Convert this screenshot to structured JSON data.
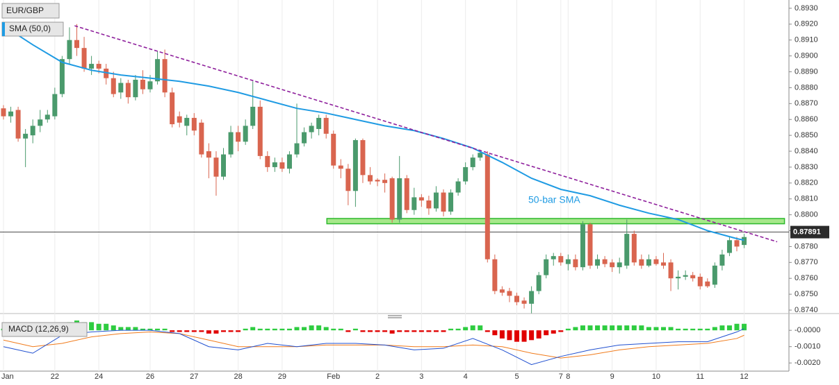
{
  "chart_data": {
    "type": "candlestick",
    "title": "EUR/GBP",
    "categories": [
      "Jan",
      null,
      null,
      null,
      null,
      null,
      null,
      "22",
      null,
      null,
      null,
      null,
      null,
      "24",
      null,
      null,
      null,
      null,
      null,
      null,
      "26",
      null,
      null,
      null,
      null,
      null,
      "27",
      null,
      null,
      null,
      null,
      null,
      "28",
      null,
      null,
      null,
      null,
      null,
      "29",
      null,
      null,
      null,
      null,
      null,
      null,
      "Feb",
      null,
      null,
      null,
      null,
      null,
      "2",
      null,
      null,
      null,
      null,
      null,
      "3",
      null,
      null,
      null,
      null,
      null,
      "4",
      null,
      null,
      null,
      null,
      null,
      null,
      "5",
      null,
      null,
      null,
      null,
      null,
      "7",
      "8",
      null,
      null,
      null,
      null,
      null,
      "9",
      null,
      null,
      null,
      null,
      null,
      "10",
      null,
      null,
      null,
      null,
      null,
      "11",
      null,
      null,
      null,
      null,
      null,
      "12"
    ],
    "open": [
      0.8867,
      0.8862,
      0.8866,
      0.8848,
      0.885,
      0.8856,
      0.886,
      0.8862,
      0.8876,
      0.8898,
      0.891,
      0.8905,
      0.8892,
      0.8895,
      0.8892,
      0.8886,
      0.8877,
      0.8883,
      0.8874,
      0.8885,
      0.8879,
      0.8884,
      0.8898,
      0.8877,
      0.8862,
      0.8856,
      0.8861,
      0.8858,
      0.884,
      0.8836,
      0.8824,
      0.8838,
      0.8852,
      0.8846,
      0.8856,
      0.8868,
      0.8837,
      0.883,
      0.8833,
      0.8829,
      0.8838,
      0.8845,
      0.8852,
      0.8854,
      0.8861,
      0.8851,
      0.8831,
      0.8829,
      0.8815,
      0.8847,
      0.8825,
      0.8822,
      0.8822,
      0.8823,
      0.8797,
      0.8823,
      0.8803,
      0.8811,
      0.8809,
      0.8804,
      0.8814,
      0.8802,
      0.8814,
      0.8821,
      0.883,
      0.8836,
      0.8838,
      0.8772,
      0.8753,
      0.8752,
      0.8749,
      0.8746,
      0.8744,
      0.8752,
      0.8762,
      0.8772,
      0.8774,
      0.8769,
      0.8772,
      0.8767,
      0.8794,
      0.8768,
      0.8772,
      0.877,
      0.8767,
      0.8768,
      0.8788,
      0.8772,
      0.8768,
      0.8772,
      0.877,
      0.877,
      0.876,
      0.8761,
      0.8762,
      0.8761,
      0.8758,
      0.8756,
      0.8768,
      0.8776,
      0.8784,
      0.8781
    ],
    "high": [
      0.8869,
      0.8868,
      0.8868,
      0.8854,
      0.886,
      0.8866,
      0.8866,
      0.888,
      0.89,
      0.8918,
      0.892,
      0.8912,
      0.89,
      0.8897,
      0.8895,
      0.889,
      0.8886,
      0.8885,
      0.8888,
      0.8891,
      0.8888,
      0.8903,
      0.8904,
      0.888,
      0.8865,
      0.8863,
      0.8864,
      0.886,
      0.8845,
      0.884,
      0.8842,
      0.8856,
      0.8856,
      0.886,
      0.8884,
      0.8872,
      0.884,
      0.8836,
      0.8836,
      0.884,
      0.887,
      0.8855,
      0.8858,
      0.8863,
      0.8863,
      0.8853,
      0.8835,
      0.8832,
      0.8848,
      0.8848,
      0.883,
      0.8823,
      0.8826,
      0.8824,
      0.8837,
      0.8825,
      0.8817,
      0.8813,
      0.8812,
      0.8818,
      0.8816,
      0.8816,
      0.8823,
      0.8833,
      0.8838,
      0.8841,
      0.884,
      0.8775,
      0.8755,
      0.8754,
      0.8751,
      0.8748,
      0.8755,
      0.8764,
      0.8775,
      0.8776,
      0.8776,
      0.8775,
      0.8775,
      0.8796,
      0.8795,
      0.8775,
      0.8774,
      0.8772,
      0.8773,
      0.8797,
      0.879,
      0.8775,
      0.8775,
      0.8774,
      0.8776,
      0.8772,
      0.8765,
      0.8765,
      0.8764,
      0.8763,
      0.876,
      0.877,
      0.8778,
      0.8786,
      0.8786,
      0.8788
    ],
    "low": [
      0.886,
      0.8858,
      0.8846,
      0.883,
      0.8845,
      0.8852,
      0.8858,
      0.886,
      0.8874,
      0.8895,
      0.89,
      0.889,
      0.8888,
      0.8889,
      0.8882,
      0.8874,
      0.8873,
      0.887,
      0.8872,
      0.8876,
      0.8877,
      0.8882,
      0.8874,
      0.8855,
      0.8855,
      0.885,
      0.885,
      0.8836,
      0.8823,
      0.8812,
      0.8822,
      0.8836,
      0.884,
      0.8844,
      0.8854,
      0.8835,
      0.8827,
      0.8827,
      0.8827,
      0.8826,
      0.8836,
      0.8843,
      0.8848,
      0.885,
      0.8848,
      0.8829,
      0.8823,
      0.8806,
      0.8805,
      0.882,
      0.8819,
      0.8818,
      0.8814,
      0.8795,
      0.8795,
      0.8801,
      0.88,
      0.8805,
      0.88,
      0.8802,
      0.8799,
      0.88,
      0.8812,
      0.8819,
      0.8828,
      0.8834,
      0.877,
      0.875,
      0.8749,
      0.8745,
      0.8743,
      0.8741,
      0.8738,
      0.875,
      0.876,
      0.8768,
      0.8768,
      0.8765,
      0.8765,
      0.8765,
      0.8766,
      0.8766,
      0.8767,
      0.8764,
      0.8763,
      0.8766,
      0.8768,
      0.8766,
      0.8767,
      0.8768,
      0.8766,
      0.8752,
      0.8753,
      0.8759,
      0.8758,
      0.8753,
      0.8754,
      0.8754,
      0.8765,
      0.8774,
      0.8777,
      0.8779
    ],
    "close": [
      0.8862,
      0.8865,
      0.8848,
      0.8851,
      0.8856,
      0.886,
      0.8863,
      0.8876,
      0.8898,
      0.891,
      0.8905,
      0.8892,
      0.8895,
      0.8892,
      0.8886,
      0.8876,
      0.8883,
      0.8874,
      0.8885,
      0.8879,
      0.8884,
      0.8898,
      0.8877,
      0.8857,
      0.8858,
      0.8861,
      0.8853,
      0.8838,
      0.8836,
      0.8824,
      0.8838,
      0.8852,
      0.8846,
      0.8856,
      0.8868,
      0.8837,
      0.883,
      0.8833,
      0.8829,
      0.8838,
      0.8845,
      0.8852,
      0.8856,
      0.8861,
      0.8851,
      0.8831,
      0.8829,
      0.8815,
      0.8847,
      0.8825,
      0.8821,
      0.8821,
      0.882,
      0.8797,
      0.8823,
      0.8803,
      0.8811,
      0.8809,
      0.8804,
      0.8814,
      0.8802,
      0.8814,
      0.8821,
      0.883,
      0.8836,
      0.8839,
      0.8772,
      0.8752,
      0.8751,
      0.8749,
      0.8745,
      0.8744,
      0.8752,
      0.8762,
      0.8772,
      0.8774,
      0.877,
      0.8772,
      0.8767,
      0.8794,
      0.8768,
      0.8772,
      0.8769,
      0.8767,
      0.877,
      0.8788,
      0.877,
      0.8768,
      0.8772,
      0.8769,
      0.8768,
      0.876,
      0.8761,
      0.8762,
      0.876,
      0.8755,
      0.8755,
      0.8768,
      0.8775,
      0.8784,
      0.878,
      0.8786
    ],
    "up_color": "#4a9a6c",
    "down_color": "#d9654f",
    "ylim": [
      0.87387,
      0.89352
    ],
    "yticks": [
      {
        "value": 0.874,
        "label": "0.8740"
      },
      {
        "value": 0.875,
        "label": "0.8750"
      },
      {
        "value": 0.876,
        "label": "0.8760"
      },
      {
        "value": 0.877,
        "label": "0.8770"
      },
      {
        "value": 0.878,
        "label": "0.8780"
      },
      {
        "value": 0.879,
        "label": "0.8790"
      },
      {
        "value": 0.88,
        "label": "0.8800"
      },
      {
        "value": 0.881,
        "label": "0.8810"
      },
      {
        "value": 0.882,
        "label": "0.8820"
      },
      {
        "value": 0.883,
        "label": "0.8830"
      },
      {
        "value": 0.884,
        "label": "0.8840"
      },
      {
        "value": 0.885,
        "label": "0.8850"
      },
      {
        "value": 0.886,
        "label": "0.8860"
      },
      {
        "value": 0.887,
        "label": "0.8870"
      },
      {
        "value": 0.888,
        "label": "0.8880"
      },
      {
        "value": 0.889,
        "label": "0.8890"
      },
      {
        "value": 0.89,
        "label": "0.8900"
      },
      {
        "value": 0.891,
        "label": "0.8910"
      },
      {
        "value": 0.892,
        "label": "0.8920"
      },
      {
        "value": 0.893,
        "label": "0.8930"
      }
    ],
    "grid": true,
    "current_price": {
      "value": 0.87891,
      "label": "0.87891"
    },
    "sma": {
      "name": "SMA (50,0)",
      "color": "#1f9be3",
      "x": [
        0,
        4,
        8,
        12,
        16,
        20,
        24,
        28,
        32,
        36,
        40,
        44,
        48,
        52,
        56,
        60,
        64,
        68,
        72,
        76,
        80,
        84,
        88,
        92,
        96,
        100,
        101
      ],
      "values": [
        0.8919,
        0.8907,
        0.8896,
        0.8891,
        0.8888,
        0.8886,
        0.8884,
        0.8881,
        0.8877,
        0.8872,
        0.8867,
        0.8864,
        0.886,
        0.8856,
        0.8853,
        0.8848,
        0.8842,
        0.8833,
        0.8823,
        0.8816,
        0.8812,
        0.8806,
        0.8801,
        0.8797,
        0.879,
        0.8785,
        0.8784
      ]
    },
    "annotation": "50-bar SMA",
    "trendline": {
      "color": "#8e1f9c",
      "x": [
        9.7,
        105.5
      ],
      "values": [
        0.8919,
        0.8783
      ]
    },
    "zone": {
      "color": "#2db82d",
      "x": [
        44.1,
        106.5
      ],
      "values": [
        0.8797,
        0.8795
      ]
    },
    "macd": {
      "title": "MACD (12,26,9)",
      "ylim": [
        -0.0025,
        0.0009
      ],
      "yticks": [
        {
          "value": 0,
          "label": "-0.0000"
        },
        {
          "value": -0.001,
          "label": "-0.0010"
        },
        {
          "value": -0.002,
          "label": "-0.0020"
        }
      ],
      "up_color": "#2ecc40",
      "down_color": "#e00000",
      "histogram": [
        0.0001,
        0.0001,
        0.0001,
        0.0001,
        0.0001,
        0.0001,
        0.0001,
        0.0002,
        0.0004,
        0.0005,
        0.0006,
        0.0005,
        0.0005,
        0.0004,
        0.0004,
        0.0003,
        0.0002,
        0.0002,
        0.0002,
        0.0001,
        0.0001,
        0.0001,
        0.0001,
        -0.0001,
        -0.0001,
        -0.0001,
        -0.0001,
        -0.0001,
        -0.0002,
        -0.0002,
        -0.0001,
        -0.0001,
        -0.0001,
        0.0001,
        0.0002,
        0.0001,
        0.0001,
        0.0001,
        0.0001,
        0.0001,
        0.0002,
        0.0002,
        0.0003,
        0.0003,
        0.0002,
        0.0001,
        0.0001,
        -0.0001,
        0.0001,
        -0.0001,
        -0.0001,
        -0.0001,
        -0.0001,
        -0.0002,
        -0.0001,
        -0.0001,
        -0.0001,
        -0.0001,
        -0.0001,
        -0.0001,
        -0.0001,
        0.0001,
        0.0001,
        0.0002,
        0.0003,
        0.0003,
        -0.0001,
        -0.0003,
        -0.0005,
        -0.0006,
        -0.0007,
        -0.0007,
        -0.0006,
        -0.0005,
        -0.0003,
        -0.0002,
        -0.0001,
        0.0001,
        0.0002,
        0.0003,
        0.0003,
        0.0003,
        0.0003,
        0.0003,
        0.0003,
        0.0003,
        0.0003,
        0.0003,
        0.0002,
        0.0002,
        0.0002,
        0.0002,
        0.0001,
        0.0001,
        0.0001,
        0.0001,
        0.0001,
        0.0002,
        0.0003,
        0.0003,
        0.0004,
        0.0004
      ],
      "macd_line": {
        "color": "#1f4fd0",
        "x": [
          0,
          4,
          8,
          12,
          16,
          20,
          24,
          28,
          32,
          36,
          40,
          44,
          48,
          52,
          56,
          60,
          64,
          68,
          72,
          76,
          80,
          84,
          88,
          92,
          96,
          100,
          101
        ],
        "values": [
          -0.001,
          -0.0014,
          -0.0003,
          -0.0001,
          0,
          0,
          -0.0002,
          -0.001,
          -0.0012,
          -0.0008,
          -0.001,
          -0.0008,
          -0.0008,
          -0.0009,
          -0.0012,
          -0.0011,
          -0.0005,
          -0.0012,
          -0.0021,
          -0.0016,
          -0.0012,
          -0.0009,
          -0.0008,
          -0.0007,
          -0.0007,
          -0.0001,
          0.0001
        ]
      },
      "signal_line": {
        "color": "#f07a1a",
        "x": [
          0,
          4,
          8,
          12,
          16,
          20,
          24,
          28,
          32,
          36,
          40,
          44,
          48,
          52,
          56,
          60,
          64,
          68,
          72,
          76,
          80,
          84,
          88,
          92,
          96,
          100,
          101
        ],
        "values": [
          -0.0006,
          -0.001,
          -0.0008,
          -0.0004,
          -0.0002,
          -0.0001,
          -0.0002,
          -0.0006,
          -0.001,
          -0.001,
          -0.001,
          -0.0009,
          -0.0009,
          -0.0009,
          -0.001,
          -0.001,
          -0.0009,
          -0.001,
          -0.0014,
          -0.0017,
          -0.0015,
          -0.0012,
          -0.001,
          -0.0009,
          -0.0008,
          -0.0005,
          -0.0003
        ]
      }
    }
  }
}
